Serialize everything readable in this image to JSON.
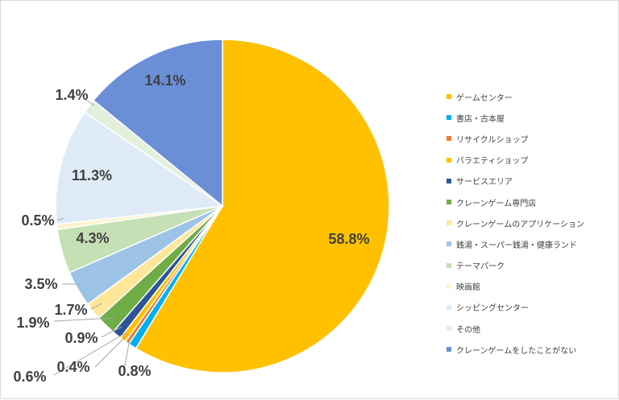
{
  "chart_data": {
    "type": "pie",
    "title": "",
    "start_angle_deg": 0,
    "direction": "clockwise",
    "slices": [
      {
        "name": "ゲームセンター",
        "value": 58.8,
        "label": "58.8%",
        "color": "#FFC000"
      },
      {
        "name": "書店・古本屋",
        "value": 0.8,
        "label": "0.8%",
        "color": "#00B0F0"
      },
      {
        "name": "リサイクルショップ",
        "value": 0.4,
        "label": "0.4%",
        "color": "#ED7D31"
      },
      {
        "name": "バラエティショップ",
        "value": 0.6,
        "label": "0.6%",
        "color": "#FFC000"
      },
      {
        "name": "サービスエリア",
        "value": 0.9,
        "label": "0.9%",
        "color": "#2E5597"
      },
      {
        "name": "クレーンゲーム専門店",
        "value": 1.9,
        "label": "1.9%",
        "color": "#70AD47"
      },
      {
        "name": "クレーンゲームのアプリケーション",
        "value": 1.7,
        "label": "1.7%",
        "color": "#FFE699"
      },
      {
        "name": "銭湯・スーパー銭湯・健康ランド",
        "value": 3.5,
        "label": "3.5%",
        "color": "#9DC3E6"
      },
      {
        "name": "テーマパーク",
        "value": 4.3,
        "label": "4.3%",
        "color": "#C5E0B4"
      },
      {
        "name": "映画館",
        "value": 0.5,
        "label": "0.5%",
        "color": "#FFF2CC"
      },
      {
        "name": "シッピングセンター",
        "value": 11.3,
        "label": "11.3%",
        "color": "#DEEBF7"
      },
      {
        "name": "その他",
        "value": 1.4,
        "label": "1.4%",
        "color": "#E2EFDA"
      },
      {
        "name": "クレーンゲームをしたことがない",
        "value": 14.1,
        "label": "14.1%",
        "color": "#6A8FD6"
      }
    ],
    "legend_position": "right"
  }
}
